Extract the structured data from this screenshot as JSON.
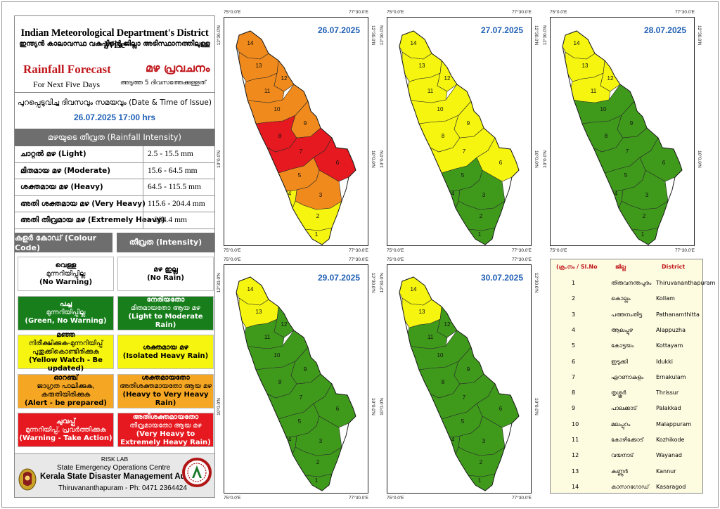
{
  "header": {
    "title_en": "Indian Meteorological Department's District Wise",
    "title_ml": "ഇന്ത്യൻ കാലാവസ്ഥ വകുപ്പിന്റെ ജില്ലാ അടിസ്ഥാനത്തിലുള്ള",
    "forecast_en": "Rainfall Forecast",
    "forecast_ml": "മഴ പ്രവചനം",
    "sub_en": "For Next Five Days",
    "sub_ml": "അടുത്ത 5 ദിവസത്തേക്കുള്ളത്"
  },
  "issue": {
    "label": "പുറപ്പെടുവിച്ച ദിവസവും സമയവും (Date & Time of Issue)",
    "datetime": "26.07.2025  17:00 hrs"
  },
  "intensity": {
    "title": "മഴയുടെ തീവ്രത (Rainfall Intensity)",
    "rows": [
      {
        "label": "ചാറ്റൽ മഴ (Light)",
        "range": "2.5 - 15.5 mm"
      },
      {
        "label": "മിതമായ മഴ (Moderate)",
        "range": "15.6 - 64.5 mm"
      },
      {
        "label": "ശക്തമായ മഴ (Heavy)",
        "range": "64.5 - 115.5 mm"
      },
      {
        "label": "അതി ശക്തമായ മഴ (Very Heavy)",
        "range": "115.6 - 204.4 mm"
      },
      {
        "label": "അതി തീവ്രമായ മഴ (Extremely Heavy)",
        "range": "> 204.4 mm"
      }
    ]
  },
  "colour_code": {
    "left_title": "കളർ കോഡ് (Colour Code)",
    "right_title": "തീവ്രത (Intensity)",
    "rows": [
      {
        "bg": "#ffffff",
        "fg": "#000000",
        "code_ml": "വെള്ള",
        "code_ml2": "മുന്നറിയിപ്പില്ല",
        "code_en": "(No Warning)",
        "int_ml": "മഴ ഇല്ല",
        "int_ml2": "",
        "int_en": "(No Rain)"
      },
      {
        "bg": "#177e1b",
        "fg": "#ffffff",
        "code_ml": "പച്ച",
        "code_ml2": "മുന്നറിയിപ്പില്ല",
        "code_en": "(Green, No Warning)",
        "int_ml": "നേരിയതോ",
        "int_ml2": "മിതമായതോ ആയ മഴ",
        "int_en": "(Light to Moderate Rain)"
      },
      {
        "bg": "#f5f50f",
        "fg": "#000000",
        "code_ml": "മഞ്ഞ",
        "code_ml2": "നിരീക്ഷിക്കുക-മുന്നറിയിപ്പ് പുതുക്കികൊണ്ടിരിക്കുക",
        "code_en": "(Yellow Watch - Be updated)",
        "int_ml": "ശക്തമായ മഴ",
        "int_ml2": "",
        "int_en": "(Isolated Heavy Rain)"
      },
      {
        "bg": "#f5a623",
        "fg": "#000000",
        "code_ml": "ഓറഞ്ച്",
        "code_ml2": "ജാഗ്രത പാലിക്കുക, കരുതിയിരിക്കുക",
        "code_en": "(Alert - be prepared)",
        "int_ml": "ശക്തമായതോ",
        "int_ml2": "അതിശക്തമായതോ ആയ മഴ",
        "int_en": "(Heavy to Very Heavy Rain)"
      },
      {
        "bg": "#e5191f",
        "fg": "#ffffff",
        "code_ml": "ചുവപ്പ്",
        "code_ml2": "മുന്നറിയിപ്പ്, പ്രവർത്തിക്കുക",
        "code_en": "(Warning - Take Action)",
        "int_ml": "അതിശക്തമായതോ",
        "int_ml2": "തീവ്രമായതോ ആയ മഴ",
        "int_en": "(Very Heavy to Extremely Heavy Rain)"
      }
    ]
  },
  "footer": {
    "lab": "RISK LAB",
    "centre": "State Emergency Operations Centre",
    "authority": "Kerala State Disaster Management Authority",
    "contact": "Thiruvananthapuram - Ph: 0471 2364424",
    "emblem_icon": "kerala-emblem-icon",
    "logo_icon": "ksdma-logo-icon"
  },
  "colors": {
    "white": "#ffffff",
    "green": "#3f9a1c",
    "yellow": "#f5f50f",
    "orange": "#f08a1c",
    "red": "#e5191f"
  },
  "ticks": {
    "lon_left": "75°0.0'E",
    "lon_right": "77°30.0'E",
    "lat_top": "12°30.0'N",
    "lat_mid": "10°0.0'N"
  },
  "maps": [
    {
      "date": "26.07.2025",
      "warnings": {
        "1": "yellow",
        "2": "yellow",
        "3": "orange",
        "4": "yellow",
        "5": "orange",
        "6": "red",
        "7": "red",
        "8": "red",
        "9": "orange",
        "10": "orange",
        "11": "orange",
        "12": "orange",
        "13": "orange",
        "14": "orange"
      }
    },
    {
      "date": "27.07.2025",
      "warnings": {
        "1": "green",
        "2": "green",
        "3": "green",
        "4": "green",
        "5": "green",
        "6": "yellow",
        "7": "yellow",
        "8": "yellow",
        "9": "yellow",
        "10": "yellow",
        "11": "yellow",
        "12": "yellow",
        "13": "yellow",
        "14": "yellow"
      }
    },
    {
      "date": "28.07.2025",
      "warnings": {
        "1": "green",
        "2": "green",
        "3": "green",
        "4": "green",
        "5": "green",
        "6": "green",
        "7": "green",
        "8": "green",
        "9": "green",
        "10": "green",
        "11": "yellow",
        "12": "yellow",
        "13": "yellow",
        "14": "yellow"
      }
    },
    {
      "date": "29.07.2025",
      "warnings": {
        "1": "green",
        "2": "green",
        "3": "green",
        "4": "green",
        "5": "green",
        "6": "green",
        "7": "green",
        "8": "green",
        "9": "green",
        "10": "green",
        "11": "green",
        "12": "green",
        "13": "yellow",
        "14": "yellow"
      }
    },
    {
      "date": "30.07.2025",
      "warnings": {
        "1": "green",
        "2": "green",
        "3": "green",
        "4": "green",
        "5": "green",
        "6": "green",
        "7": "green",
        "8": "green",
        "9": "green",
        "10": "green",
        "11": "green",
        "12": "green",
        "13": "yellow",
        "14": "yellow"
      }
    }
  ],
  "districts": {
    "head_no": "(ക്ര.നം / Sl.No",
    "head_ml": "ജില്ല",
    "head_en": "District",
    "rows": [
      {
        "no": "1",
        "ml": "തിരുവനന്തപുരം",
        "en": "Thiruvananthapuram"
      },
      {
        "no": "2",
        "ml": "കൊല്ലം",
        "en": "Kollam"
      },
      {
        "no": "3",
        "ml": "പത്തനംതിട്ട",
        "en": "Pathanamthitta"
      },
      {
        "no": "4",
        "ml": "ആലപ്പുഴ",
        "en": "Alappuzha"
      },
      {
        "no": "5",
        "ml": "കോട്ടയം",
        "en": "Kottayam"
      },
      {
        "no": "6",
        "ml": "ഇടുക്കി",
        "en": "Idukki"
      },
      {
        "no": "7",
        "ml": "എറണാകുളം",
        "en": "Ernakulam"
      },
      {
        "no": "8",
        "ml": "തൃശ്ശൂർ",
        "en": "Thrissur"
      },
      {
        "no": "9",
        "ml": "പാലക്കാട്",
        "en": "Palakkad"
      },
      {
        "no": "10",
        "ml": "മലപ്പുറം",
        "en": "Malappuram"
      },
      {
        "no": "11",
        "ml": "കോഴിക്കോട്",
        "en": "Kozhikode"
      },
      {
        "no": "12",
        "ml": "വയനാട്",
        "en": "Wayanad"
      },
      {
        "no": "13",
        "ml": "കണ്ണൂർ",
        "en": "Kannur"
      },
      {
        "no": "14",
        "ml": "കാസറഗോഡ്",
        "en": "Kasaragod"
      }
    ]
  }
}
